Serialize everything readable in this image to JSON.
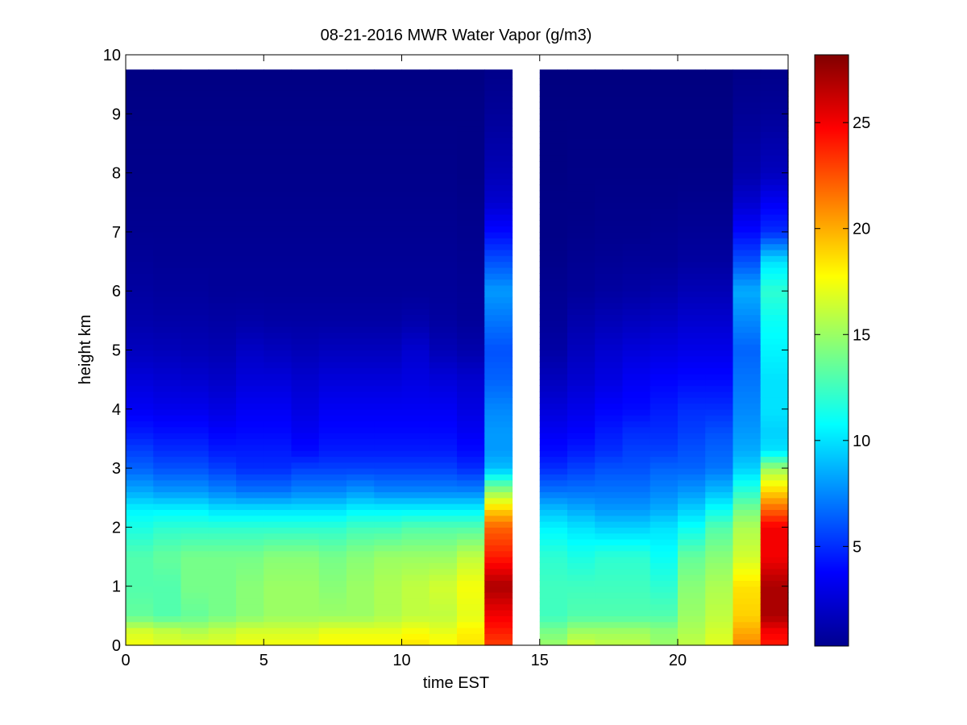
{
  "chart_data": {
    "type": "heatmap",
    "title": "08-21-2016 MWR Water Vapor (g/m3)",
    "xlabel": "time EST",
    "ylabel": "height km",
    "xlim": [
      0,
      24
    ],
    "ylim": [
      0,
      10
    ],
    "x_ticks": [
      0,
      5,
      10,
      15,
      20
    ],
    "y_ticks": [
      0,
      1,
      2,
      3,
      4,
      5,
      6,
      7,
      8,
      9,
      10
    ],
    "x_tick_labels": [
      "0",
      "5",
      "10",
      "15",
      "20"
    ],
    "y_tick_labels": [
      "0",
      "1",
      "2",
      "3",
      "4",
      "5",
      "6",
      "7",
      "8",
      "9",
      "10"
    ],
    "colormap": "jet",
    "colorbar": {
      "range": [
        0.3,
        28.2
      ],
      "ticks": [
        5,
        10,
        15,
        20,
        25
      ],
      "tick_labels": [
        "5",
        "10",
        "15",
        "20",
        "25"
      ]
    },
    "time_bins_hours": [
      0,
      1,
      2,
      3,
      4,
      5,
      6,
      7,
      8,
      9,
      10,
      11,
      12,
      13,
      15,
      16,
      17,
      18,
      19,
      20,
      21,
      22,
      23
    ],
    "time_bin_width_hours": 1,
    "height_top_km": 9.75,
    "profile_heights_km": [
      0,
      0.25,
      0.5,
      1,
      1.5,
      2,
      2.3,
      2.6,
      3,
      3.3,
      3.6,
      4,
      4.5,
      5,
      5.5,
      6,
      6.5,
      7,
      7.5,
      8,
      9,
      9.75
    ],
    "profiles_g_m3": [
      [
        17.5,
        16.5,
        13.5,
        13.0,
        13.0,
        11.5,
        10.5,
        8.5,
        6.5,
        5.5,
        4.5,
        3.5,
        2.8,
        2.0,
        1.5,
        1.2,
        1.0,
        0.8,
        0.7,
        0.6,
        0.5,
        0.4
      ],
      [
        17.0,
        16.0,
        13.0,
        13.0,
        13.5,
        12.0,
        10.5,
        8.0,
        6.0,
        5.0,
        4.2,
        3.3,
        2.6,
        1.9,
        1.4,
        1.1,
        0.9,
        0.8,
        0.7,
        0.6,
        0.5,
        0.4
      ],
      [
        17.0,
        15.5,
        13.5,
        14.0,
        14.0,
        12.0,
        10.5,
        8.0,
        6.0,
        5.0,
        4.2,
        3.3,
        2.5,
        1.8,
        1.4,
        1.1,
        0.9,
        0.8,
        0.7,
        0.6,
        0.5,
        0.4
      ],
      [
        17.0,
        16.0,
        14.0,
        14.0,
        14.0,
        12.0,
        10.0,
        7.5,
        5.5,
        4.5,
        3.8,
        3.0,
        2.3,
        1.7,
        1.3,
        1.0,
        0.9,
        0.8,
        0.7,
        0.6,
        0.5,
        0.4
      ],
      [
        17.5,
        16.5,
        14.5,
        14.5,
        14.0,
        12.0,
        10.0,
        7.0,
        5.0,
        4.5,
        4.0,
        3.5,
        2.8,
        2.2,
        1.4,
        1.0,
        0.9,
        0.8,
        0.7,
        0.6,
        0.5,
        0.4
      ],
      [
        17.5,
        16.5,
        15.0,
        15.0,
        14.5,
        12.0,
        10.0,
        7.0,
        5.0,
        4.5,
        4.0,
        3.5,
        2.8,
        2.0,
        1.3,
        1.0,
        0.9,
        0.8,
        0.7,
        0.6,
        0.5,
        0.4
      ],
      [
        17.5,
        16.5,
        15.0,
        15.0,
        14.5,
        12.0,
        10.0,
        7.5,
        5.5,
        4.0,
        3.5,
        3.0,
        2.5,
        1.8,
        1.3,
        1.0,
        0.9,
        0.8,
        0.7,
        0.6,
        0.5,
        0.4
      ],
      [
        18.0,
        17.0,
        15.0,
        14.5,
        14.0,
        12.0,
        10.0,
        7.5,
        5.5,
        4.5,
        4.0,
        3.5,
        2.8,
        2.0,
        1.3,
        1.0,
        0.9,
        0.8,
        0.7,
        0.6,
        0.5,
        0.4
      ],
      [
        18.0,
        17.0,
        15.0,
        15.0,
        14.5,
        12.5,
        10.5,
        8.0,
        5.5,
        4.5,
        4.0,
        3.5,
        2.8,
        2.0,
        1.3,
        1.0,
        0.9,
        0.8,
        0.7,
        0.6,
        0.5,
        0.4
      ],
      [
        18.0,
        17.0,
        15.5,
        15.5,
        15.0,
        12.5,
        10.5,
        7.5,
        5.5,
        4.5,
        4.0,
        3.5,
        2.8,
        2.0,
        1.3,
        1.0,
        0.9,
        0.8,
        0.7,
        0.6,
        0.5,
        0.4
      ],
      [
        18.5,
        17.5,
        16.0,
        16.0,
        15.0,
        13.0,
        10.5,
        7.5,
        5.5,
        4.5,
        4.0,
        3.5,
        3.0,
        2.5,
        1.5,
        1.0,
        0.9,
        0.8,
        0.7,
        0.6,
        0.5,
        0.4
      ],
      [
        18.0,
        17.0,
        16.0,
        16.5,
        15.0,
        13.0,
        10.5,
        7.5,
        5.5,
        4.5,
        4.0,
        3.5,
        2.8,
        1.8,
        1.2,
        1.0,
        0.9,
        0.8,
        0.7,
        0.6,
        0.5,
        0.4
      ],
      [
        18.5,
        18.0,
        17.0,
        17.5,
        16.0,
        13.0,
        10.5,
        7.5,
        5.0,
        4.0,
        3.5,
        3.0,
        2.5,
        1.5,
        1.0,
        0.9,
        0.8,
        0.7,
        0.6,
        0.5,
        0.5,
        0.4
      ],
      [
        23.0,
        24.0,
        25.0,
        27.0,
        24.0,
        22.0,
        19.0,
        15.0,
        9.0,
        8.0,
        8.0,
        7.5,
        6.5,
        6.0,
        7.0,
        8.0,
        6.0,
        4.0,
        2.5,
        1.8,
        1.0,
        0.6
      ],
      [
        15.0,
        14.0,
        12.5,
        12.5,
        12.0,
        10.5,
        9.0,
        7.0,
        5.0,
        4.0,
        3.5,
        2.8,
        2.0,
        1.3,
        1.0,
        0.8,
        0.6,
        0.5,
        0.5,
        0.4,
        0.4,
        0.3
      ],
      [
        16.5,
        15.0,
        13.0,
        12.5,
        11.5,
        10.0,
        8.5,
        7.0,
        5.5,
        4.5,
        3.8,
        3.2,
        2.5,
        2.0,
        1.5,
        1.0,
        0.8,
        0.6,
        0.5,
        0.5,
        0.4,
        0.3
      ],
      [
        16.0,
        15.0,
        13.0,
        12.5,
        12.0,
        9.5,
        8.0,
        7.0,
        6.0,
        5.0,
        4.5,
        3.8,
        3.0,
        2.5,
        1.8,
        1.2,
        0.9,
        0.7,
        0.6,
        0.5,
        0.4,
        0.3
      ],
      [
        16.0,
        15.0,
        13.0,
        12.5,
        12.0,
        9.5,
        8.0,
        7.0,
        6.0,
        5.5,
        5.0,
        4.0,
        3.5,
        2.8,
        2.0,
        1.3,
        1.0,
        0.7,
        0.6,
        0.5,
        0.4,
        0.3
      ],
      [
        15.0,
        14.5,
        13.0,
        12.0,
        11.0,
        10.0,
        8.5,
        7.5,
        6.5,
        5.5,
        5.0,
        4.5,
        3.8,
        3.0,
        2.2,
        1.5,
        1.0,
        0.8,
        0.6,
        0.5,
        0.4,
        0.3
      ],
      [
        16.0,
        15.5,
        15.0,
        14.5,
        13.5,
        11.0,
        9.5,
        8.0,
        6.5,
        6.0,
        5.5,
        5.0,
        4.0,
        3.2,
        2.5,
        1.8,
        1.2,
        0.9,
        0.7,
        0.5,
        0.4,
        0.3
      ],
      [
        17.0,
        16.5,
        16.0,
        15.5,
        14.5,
        13.0,
        11.0,
        9.0,
        7.0,
        6.5,
        6.0,
        5.0,
        4.0,
        3.2,
        2.5,
        1.8,
        1.2,
        0.9,
        0.7,
        0.5,
        0.4,
        0.3
      ],
      [
        21.0,
        20.0,
        19.0,
        18.5,
        16.5,
        15.5,
        14.0,
        12.0,
        9.5,
        8.5,
        8.0,
        7.5,
        7.0,
        6.5,
        7.5,
        8.5,
        6.0,
        4.0,
        2.5,
        1.5,
        0.9,
        0.5
      ],
      [
        24.0,
        25.0,
        27.0,
        27.0,
        25.0,
        25.0,
        22.0,
        19.0,
        15.0,
        10.0,
        9.5,
        10.0,
        10.0,
        10.5,
        11.0,
        12.0,
        10.0,
        5.0,
        3.5,
        2.0,
        1.0,
        0.6
      ]
    ]
  }
}
